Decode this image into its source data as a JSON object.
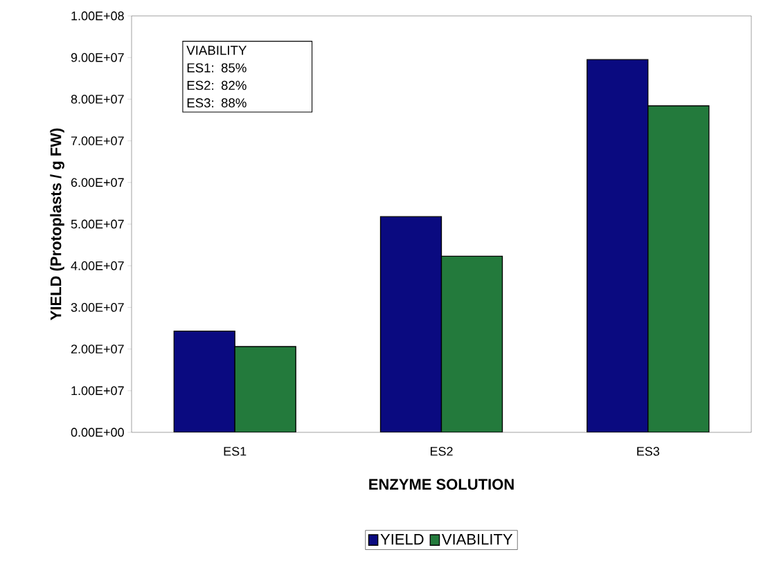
{
  "chart_data": {
    "type": "bar",
    "xlabel": "ENZYME SOLUTION",
    "ylabel": "YIELD (Protoplasts / g FW)",
    "categories": [
      "ES1",
      "ES2",
      "ES3"
    ],
    "series": [
      {
        "name": "YIELD",
        "color": "#0a0a80",
        "values": [
          24300000,
          51800000,
          89500000
        ]
      },
      {
        "name": "VIABILITY",
        "color": "#237a3c",
        "values": [
          20600000,
          42300000,
          78400000
        ]
      }
    ],
    "ylim": [
      0,
      100000000
    ],
    "yticks": [
      {
        "value": 0,
        "label": "0.00E+00"
      },
      {
        "value": 10000000,
        "label": "1.00E+07"
      },
      {
        "value": 20000000,
        "label": "2.00E+07"
      },
      {
        "value": 30000000,
        "label": "3.00E+07"
      },
      {
        "value": 40000000,
        "label": "4.00E+07"
      },
      {
        "value": 50000000,
        "label": "5.00E+07"
      },
      {
        "value": 60000000,
        "label": "6.00E+07"
      },
      {
        "value": 70000000,
        "label": "7.00E+07"
      },
      {
        "value": 80000000,
        "label": "8.00E+07"
      },
      {
        "value": 90000000,
        "label": "9.00E+07"
      },
      {
        "value": 100000000,
        "label": "1.00E+08"
      }
    ],
    "annotations": [
      "VIABILITY",
      "ES1: 85%",
      "ES2: 82%",
      "ES3: 88%"
    ],
    "legend": "bottom"
  }
}
